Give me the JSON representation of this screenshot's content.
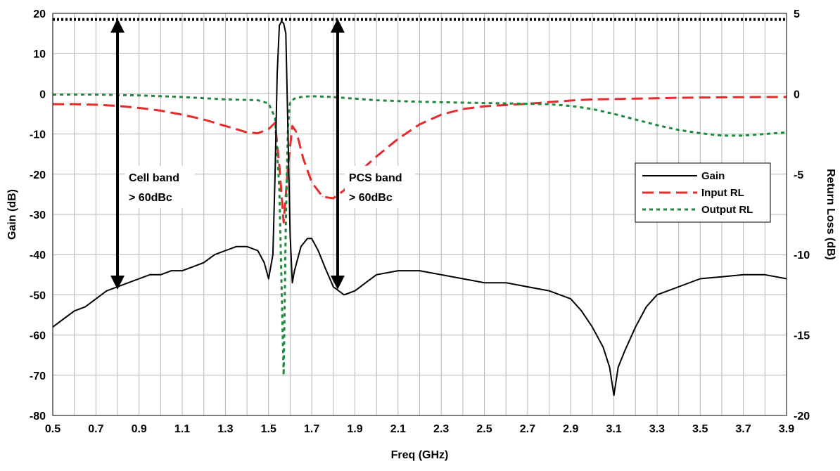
{
  "chart_data": {
    "type": "line",
    "xlabel": "Freq (GHz)",
    "ylabel": "Gain (dB)",
    "y2label": "Return Loss (dB)",
    "xlim": [
      0.5,
      3.9
    ],
    "ylim": [
      -80,
      20
    ],
    "y2lim": [
      -20,
      5
    ],
    "grid": true,
    "legend_position": "right",
    "x_ticks": [
      "0.5",
      "0.7",
      "0.9",
      "1.1",
      "1.3",
      "1.5",
      "1.7",
      "1.9",
      "2.1",
      "2.3",
      "2.5",
      "2.7",
      "2.9",
      "3.1",
      "3.3",
      "3.5",
      "3.7",
      "3.9"
    ],
    "y_ticks": [
      "20",
      "10",
      "0",
      "-10",
      "-20",
      "-30",
      "-40",
      "-50",
      "-60",
      "-70",
      "-80"
    ],
    "y2_ticks": [
      "5",
      "0",
      "-5",
      "-10",
      "-15",
      "-20"
    ],
    "series": [
      {
        "name": "Gain",
        "axis": "left",
        "color": "#000000",
        "style": "solid",
        "x": [
          0.5,
          0.55,
          0.6,
          0.65,
          0.7,
          0.75,
          0.8,
          0.85,
          0.9,
          0.95,
          1.0,
          1.05,
          1.1,
          1.15,
          1.2,
          1.25,
          1.3,
          1.35,
          1.4,
          1.45,
          1.48,
          1.5,
          1.52,
          1.53,
          1.54,
          1.55,
          1.56,
          1.57,
          1.58,
          1.59,
          1.6,
          1.61,
          1.62,
          1.65,
          1.68,
          1.7,
          1.73,
          1.76,
          1.8,
          1.85,
          1.9,
          1.95,
          2.0,
          2.1,
          2.2,
          2.3,
          2.4,
          2.5,
          2.6,
          2.7,
          2.8,
          2.9,
          2.95,
          3.0,
          3.05,
          3.08,
          3.1,
          3.12,
          3.15,
          3.2,
          3.25,
          3.3,
          3.35,
          3.4,
          3.5,
          3.6,
          3.7,
          3.8,
          3.9
        ],
        "values": [
          -58,
          -56,
          -54,
          -53,
          -51,
          -49,
          -48,
          -47,
          -46,
          -45,
          -45,
          -44,
          -44,
          -43,
          -42,
          -40,
          -39,
          -38,
          -38,
          -39,
          -42,
          -46,
          -40,
          -20,
          5,
          17,
          18,
          17.5,
          15,
          -10,
          -35,
          -47,
          -44,
          -38,
          -36,
          -36,
          -39,
          -43,
          -48,
          -50,
          -49,
          -47,
          -45,
          -44,
          -44,
          -45,
          -46,
          -47,
          -47,
          -48,
          -49,
          -51,
          -54,
          -58,
          -63,
          -68,
          -75,
          -68,
          -64,
          -58,
          -53,
          -50,
          -49,
          -48,
          -46,
          -45.5,
          -45,
          -45,
          -46
        ]
      },
      {
        "name": "Input RL",
        "axis": "right",
        "color": "#e52b2b",
        "style": "dash",
        "x": [
          0.5,
          0.6,
          0.7,
          0.8,
          0.9,
          1.0,
          1.1,
          1.2,
          1.3,
          1.4,
          1.45,
          1.5,
          1.53,
          1.55,
          1.57,
          1.59,
          1.61,
          1.63,
          1.66,
          1.7,
          1.75,
          1.8,
          1.85,
          1.9,
          2.0,
          2.1,
          2.2,
          2.3,
          2.4,
          2.5,
          2.6,
          2.7,
          2.8,
          2.9,
          3.0,
          3.2,
          3.4,
          3.6,
          3.8,
          3.9
        ],
        "values": [
          -0.65,
          -0.65,
          -0.68,
          -0.75,
          -0.88,
          -1.05,
          -1.3,
          -1.6,
          -2.0,
          -2.4,
          -2.45,
          -2.2,
          -1.8,
          -4.5,
          -8.0,
          -4.5,
          -2.0,
          -2.4,
          -4.0,
          -5.5,
          -6.4,
          -6.5,
          -6.0,
          -5.1,
          -3.9,
          -2.8,
          -1.9,
          -1.3,
          -0.95,
          -0.78,
          -0.7,
          -0.62,
          -0.52,
          -0.42,
          -0.35,
          -0.3,
          -0.25,
          -0.22,
          -0.2,
          -0.2
        ]
      },
      {
        "name": "Output RL",
        "axis": "right",
        "color": "#1e8a3c",
        "style": "dot",
        "x": [
          0.5,
          0.7,
          0.9,
          1.1,
          1.3,
          1.45,
          1.5,
          1.53,
          1.55,
          1.57,
          1.58,
          1.59,
          1.6,
          1.62,
          1.65,
          1.7,
          1.8,
          1.9,
          2.0,
          2.2,
          2.4,
          2.6,
          2.8,
          2.9,
          3.0,
          3.1,
          3.2,
          3.3,
          3.4,
          3.5,
          3.6,
          3.7,
          3.8,
          3.9
        ],
        "values": [
          -0.05,
          -0.05,
          -0.1,
          -0.2,
          -0.35,
          -0.4,
          -0.6,
          -1.5,
          -6.0,
          -17.5,
          -8.0,
          -2.0,
          -0.5,
          -0.3,
          -0.2,
          -0.15,
          -0.2,
          -0.3,
          -0.4,
          -0.5,
          -0.55,
          -0.6,
          -0.65,
          -0.75,
          -0.95,
          -1.25,
          -1.6,
          -1.95,
          -2.25,
          -2.45,
          -2.6,
          -2.6,
          -2.5,
          -2.4
        ]
      },
      {
        "name": "",
        "axis": "left",
        "color": "#000000",
        "style": "dotted-heavy",
        "x": [
          0.5,
          3.9
        ],
        "values": [
          18.5,
          18.5
        ]
      }
    ],
    "annotations": [
      {
        "label_lines": [
          "Cell band",
          "> 60dBc"
        ],
        "x": 0.8,
        "y_top": 18,
        "y_bottom": -48
      },
      {
        "label_lines": [
          "PCS band",
          "> 60dBc"
        ],
        "x": 1.82,
        "y_top": 18,
        "y_bottom": -48
      }
    ]
  }
}
